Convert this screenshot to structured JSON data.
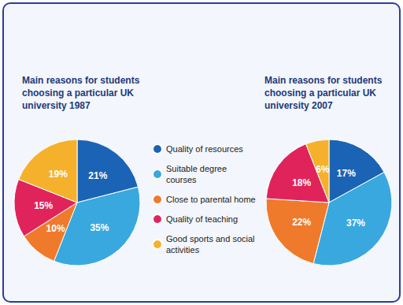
{
  "chart_data": [
    {
      "type": "pie",
      "title": "Main reasons for students\nchoosing a particular UK\nuniversity 1987",
      "categories": [
        "Quality of resources",
        "Suitable degree courses",
        "Close to parental home",
        "Quality of teaching",
        "Good sports and social activities"
      ],
      "values": [
        21,
        35,
        10,
        15,
        19
      ],
      "value_labels": [
        "21%",
        "35%",
        "10%",
        "15%",
        "19%"
      ],
      "colors": [
        "#1b63b5",
        "#39a8df",
        "#ef7a2b",
        "#e0245b",
        "#f5b12c"
      ],
      "data_labels": true,
      "legend": "right"
    },
    {
      "type": "pie",
      "title": "Main reasons for students\nchoosing a particular UK\nuniversity 2007",
      "categories": [
        "Quality of resources",
        "Suitable degree courses",
        "Close to parental home",
        "Quality of teaching",
        "Good sports and social activities"
      ],
      "values": [
        17,
        37,
        22,
        18,
        6
      ],
      "value_labels": [
        "17%",
        "37%",
        "22%",
        "18%",
        "6%"
      ],
      "colors": [
        "#1b63b5",
        "#39a8df",
        "#ef7a2b",
        "#e0245b",
        "#f5b12c"
      ],
      "data_labels": true
    }
  ]
}
